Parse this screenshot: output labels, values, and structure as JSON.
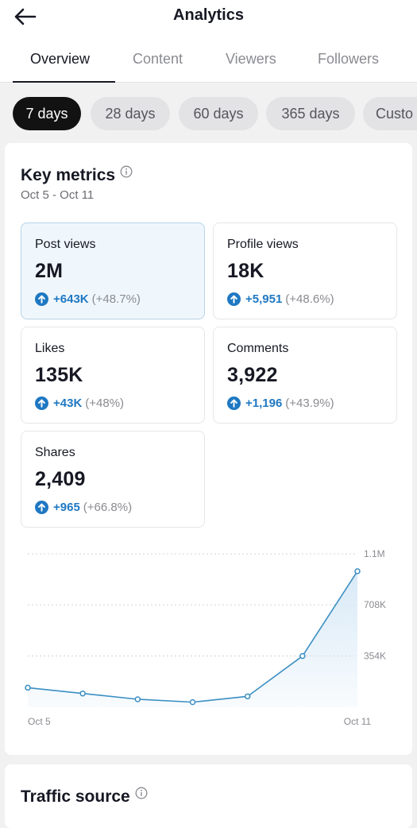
{
  "header": {
    "title": "Analytics"
  },
  "tabs": [
    {
      "label": "Overview",
      "active": true
    },
    {
      "label": "Content",
      "active": false
    },
    {
      "label": "Viewers",
      "active": false
    },
    {
      "label": "Followers",
      "active": false
    }
  ],
  "date_chips": [
    {
      "label": "7 days",
      "active": true
    },
    {
      "label": "28 days",
      "active": false
    },
    {
      "label": "60 days",
      "active": false
    },
    {
      "label": "365 days",
      "active": false
    },
    {
      "label": "Custo",
      "active": false
    }
  ],
  "key_metrics": {
    "title": "Key metrics",
    "date_range": "Oct 5 - Oct 11",
    "metrics": [
      {
        "label": "Post views",
        "value": "2M",
        "delta": "+643K",
        "pct": "(+48.7%)",
        "selected": true
      },
      {
        "label": "Profile views",
        "value": "18K",
        "delta": "+5,951",
        "pct": "(+48.6%)",
        "selected": false
      },
      {
        "label": "Likes",
        "value": "135K",
        "delta": "+43K",
        "pct": "(+48%)",
        "selected": false
      },
      {
        "label": "Comments",
        "value": "3,922",
        "delta": "+1,196",
        "pct": "(+43.9%)",
        "selected": false
      },
      {
        "label": "Shares",
        "value": "2,409",
        "delta": "+965",
        "pct": "(+66.8%)",
        "selected": false
      }
    ]
  },
  "traffic": {
    "title": "Traffic source"
  },
  "colors": {
    "accent": "#1f78c2",
    "line": "#3b8fc4",
    "fill": "#d6e8f6"
  },
  "icons": {
    "back": "arrow-left-icon",
    "info": "info-circle-icon",
    "up": "arrow-up-circle-icon"
  },
  "chart_data": {
    "type": "area",
    "x": [
      "Oct 5",
      "Oct 6",
      "Oct 7",
      "Oct 8",
      "Oct 9",
      "Oct 10",
      "Oct 11"
    ],
    "x_tick_labels": [
      "Oct 5",
      "Oct 11"
    ],
    "y_tick_labels": [
      "1.1M",
      "708K",
      "354K"
    ],
    "y_ticks": [
      1060000,
      708000,
      354000
    ],
    "values": [
      135000,
      95000,
      55000,
      35000,
      75000,
      354000,
      940000
    ],
    "ylim": [
      0,
      1060000
    ],
    "grid": true
  }
}
